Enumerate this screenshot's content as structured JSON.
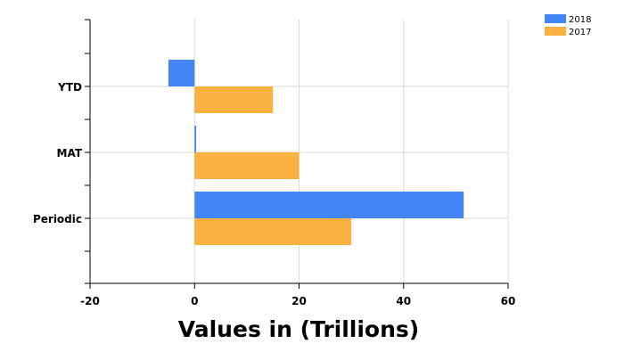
{
  "chart_data": {
    "type": "bar",
    "orientation": "horizontal",
    "categories": [
      "YTD",
      "MAT",
      "Periodic"
    ],
    "series": [
      {
        "name": "2018",
        "values": [
          -5,
          0.3,
          51.5
        ],
        "color": "#4285f4"
      },
      {
        "name": "2017",
        "values": [
          15,
          20,
          30
        ],
        "color": "#f9b241"
      }
    ],
    "xlabel": "Values in (Trillions)",
    "ylabel": "",
    "xlim": [
      -20,
      60
    ],
    "xticks": [
      -20,
      0,
      20,
      40,
      60
    ],
    "grid": true,
    "legend_position": "top-right"
  }
}
